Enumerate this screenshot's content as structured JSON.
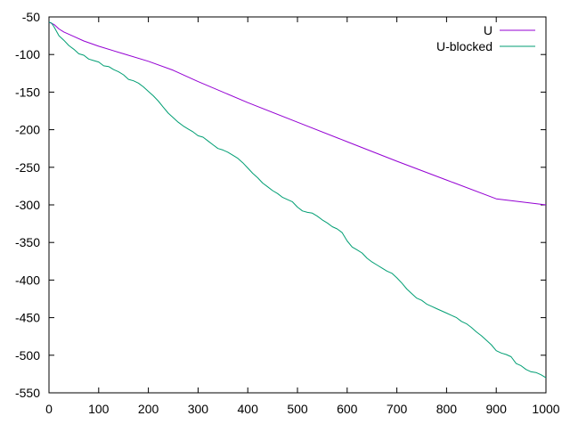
{
  "chart_data": {
    "type": "line",
    "title": "",
    "xlabel": "",
    "ylabel": "",
    "xlim": [
      0,
      1000
    ],
    "ylim": [
      -550,
      -50
    ],
    "xticks": [
      0,
      100,
      200,
      300,
      400,
      500,
      600,
      700,
      800,
      900,
      1000
    ],
    "yticks": [
      -50,
      -100,
      -150,
      -200,
      -250,
      -300,
      -350,
      -400,
      -450,
      -500,
      -550
    ],
    "grid": false,
    "legend_position": "top-right",
    "series": [
      {
        "name": "U",
        "color": "#9400d3",
        "points": [
          [
            0,
            -57
          ],
          [
            10,
            -60
          ],
          [
            20,
            -66
          ],
          [
            30,
            -70
          ],
          [
            50,
            -76
          ],
          [
            70,
            -82
          ],
          [
            100,
            -89
          ],
          [
            150,
            -99
          ],
          [
            200,
            -109
          ],
          [
            250,
            -121
          ],
          [
            300,
            -136
          ],
          [
            400,
            -164
          ],
          [
            500,
            -190
          ],
          [
            600,
            -216
          ],
          [
            700,
            -242
          ],
          [
            800,
            -267
          ],
          [
            900,
            -292
          ],
          [
            1000,
            -300
          ]
        ]
      },
      {
        "name": "U-blocked",
        "color": "#009e73",
        "points": [
          [
            0,
            -57
          ],
          [
            5,
            -58
          ],
          [
            10,
            -63
          ],
          [
            20,
            -75
          ],
          [
            30,
            -81
          ],
          [
            40,
            -88
          ],
          [
            50,
            -93
          ],
          [
            60,
            -99
          ],
          [
            70,
            -101
          ],
          [
            80,
            -106
          ],
          [
            90,
            -108
          ],
          [
            100,
            -110
          ],
          [
            110,
            -115
          ],
          [
            120,
            -116
          ],
          [
            130,
            -120
          ],
          [
            140,
            -123
          ],
          [
            150,
            -127
          ],
          [
            160,
            -133
          ],
          [
            170,
            -135
          ],
          [
            180,
            -138
          ],
          [
            190,
            -143
          ],
          [
            200,
            -149
          ],
          [
            210,
            -155
          ],
          [
            220,
            -162
          ],
          [
            230,
            -170
          ],
          [
            240,
            -178
          ],
          [
            250,
            -184
          ],
          [
            260,
            -190
          ],
          [
            270,
            -195
          ],
          [
            280,
            -199
          ],
          [
            290,
            -203
          ],
          [
            300,
            -208
          ],
          [
            310,
            -210
          ],
          [
            320,
            -215
          ],
          [
            330,
            -220
          ],
          [
            340,
            -225
          ],
          [
            350,
            -227
          ],
          [
            360,
            -230
          ],
          [
            370,
            -234
          ],
          [
            380,
            -238
          ],
          [
            390,
            -244
          ],
          [
            400,
            -251
          ],
          [
            410,
            -258
          ],
          [
            420,
            -264
          ],
          [
            430,
            -271
          ],
          [
            440,
            -276
          ],
          [
            450,
            -281
          ],
          [
            460,
            -285
          ],
          [
            470,
            -290
          ],
          [
            480,
            -293
          ],
          [
            490,
            -296
          ],
          [
            500,
            -303
          ],
          [
            510,
            -308
          ],
          [
            520,
            -310
          ],
          [
            530,
            -311
          ],
          [
            540,
            -315
          ],
          [
            550,
            -320
          ],
          [
            560,
            -324
          ],
          [
            570,
            -329
          ],
          [
            580,
            -332
          ],
          [
            590,
            -337
          ],
          [
            600,
            -348
          ],
          [
            610,
            -356
          ],
          [
            620,
            -360
          ],
          [
            630,
            -364
          ],
          [
            640,
            -371
          ],
          [
            650,
            -376
          ],
          [
            660,
            -380
          ],
          [
            670,
            -384
          ],
          [
            680,
            -388
          ],
          [
            690,
            -391
          ],
          [
            700,
            -397
          ],
          [
            710,
            -404
          ],
          [
            720,
            -412
          ],
          [
            730,
            -418
          ],
          [
            740,
            -424
          ],
          [
            750,
            -427
          ],
          [
            760,
            -432
          ],
          [
            770,
            -435
          ],
          [
            780,
            -438
          ],
          [
            790,
            -441
          ],
          [
            800,
            -444
          ],
          [
            810,
            -447
          ],
          [
            820,
            -450
          ],
          [
            830,
            -455
          ],
          [
            840,
            -458
          ],
          [
            850,
            -463
          ],
          [
            860,
            -469
          ],
          [
            870,
            -474
          ],
          [
            880,
            -480
          ],
          [
            890,
            -486
          ],
          [
            900,
            -494
          ],
          [
            910,
            -497
          ],
          [
            920,
            -499
          ],
          [
            930,
            -502
          ],
          [
            940,
            -511
          ],
          [
            950,
            -514
          ],
          [
            960,
            -519
          ],
          [
            970,
            -522
          ],
          [
            980,
            -523
          ],
          [
            990,
            -526
          ],
          [
            1000,
            -530
          ]
        ]
      }
    ]
  }
}
